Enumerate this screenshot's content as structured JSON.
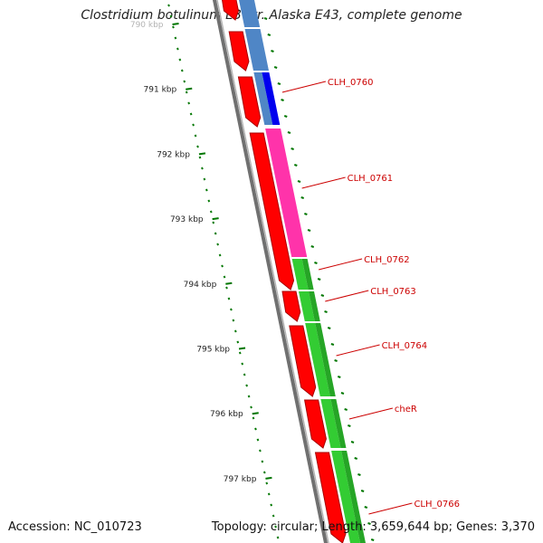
{
  "title": "Clostridium botulinum E3 str. Alaska E43, complete genome",
  "footer": {
    "accession": "Accession: NC_010723",
    "summary": "Topology: circular; Length: 3,659,644 bp; Genes: 3,370"
  },
  "colors": {
    "cds": "#ff0000",
    "cds_dark": "#a80000",
    "backbone": "#808080",
    "cog_steelblue": "#4f86c6",
    "cog_blue": "#0000ee",
    "cog_pink": "#ff33aa",
    "cog_green": "#33cc33",
    "tick": "#007700",
    "label": "#cc0000"
  },
  "ticks": [
    {
      "label": "790 kbp",
      "kbp": 790
    },
    {
      "label": "791 kbp",
      "kbp": 791
    },
    {
      "label": "792 kbp",
      "kbp": 792
    },
    {
      "label": "793 kbp",
      "kbp": 793
    },
    {
      "label": "794 kbp",
      "kbp": 794
    },
    {
      "label": "795 kbp",
      "kbp": 795
    },
    {
      "label": "796 kbp",
      "kbp": 796
    },
    {
      "label": "797 kbp",
      "kbp": 797
    }
  ],
  "genes": [
    {
      "name": "CLH_0760",
      "cog_color": "#0000ee"
    },
    {
      "name": "CLH_0761",
      "cog_color": "#ff33aa"
    },
    {
      "name": "CLH_0762",
      "cog_color": "#33cc33"
    },
    {
      "name": "CLH_0763",
      "cog_color": "#33cc33"
    },
    {
      "name": "CLH_0764",
      "cog_color": "#33cc33"
    },
    {
      "name": "cheR",
      "cog_color": "#33cc33"
    },
    {
      "name": "CLH_0766",
      "cog_color": "#33cc33"
    }
  ]
}
